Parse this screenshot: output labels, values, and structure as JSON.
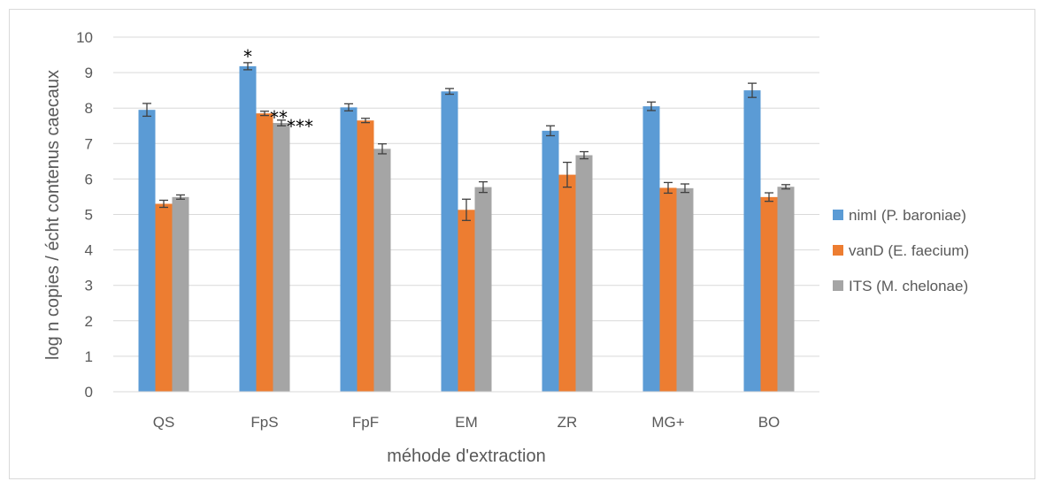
{
  "chart_data": {
    "type": "bar",
    "title": "",
    "xlabel": "méhode d'extraction",
    "ylabel": "log n copies / écht contenus caecaux",
    "ylim": [
      0,
      10
    ],
    "yticks": [
      0,
      1,
      2,
      3,
      4,
      5,
      6,
      7,
      8,
      9,
      10
    ],
    "grid": true,
    "legend_position": "right",
    "categories": [
      "QS",
      "FpS",
      "FpF",
      "EM",
      "ZR",
      "MG+",
      "BO"
    ],
    "series": [
      {
        "name": "nimI (P. baroniae)",
        "color": "#5b9bd5",
        "values": [
          7.95,
          9.18,
          8.02,
          8.47,
          7.36,
          8.05,
          8.5
        ],
        "errors": [
          0.18,
          0.1,
          0.1,
          0.08,
          0.14,
          0.12,
          0.2
        ]
      },
      {
        "name": "vanD (E. faecium)",
        "color": "#ed7d31",
        "values": [
          5.3,
          7.85,
          7.65,
          5.13,
          6.12,
          5.75,
          5.49
        ],
        "errors": [
          0.1,
          0.06,
          0.06,
          0.3,
          0.35,
          0.15,
          0.12
        ]
      },
      {
        "name": "ITS (M. chelonae)",
        "color": "#a5a5a5",
        "values": [
          5.49,
          7.58,
          6.85,
          5.77,
          6.67,
          5.74,
          5.78
        ],
        "errors": [
          0.06,
          0.08,
          0.14,
          0.15,
          0.1,
          0.12,
          0.06
        ]
      }
    ],
    "annotations": [
      {
        "text": "*",
        "category": "FpS",
        "series": "nimI (P. baroniae)"
      },
      {
        "text": "**",
        "category": "FpS",
        "series": "vanD (E. faecium)"
      },
      {
        "text": "***",
        "category": "FpS",
        "series": "ITS (M. chelonae)"
      }
    ]
  }
}
